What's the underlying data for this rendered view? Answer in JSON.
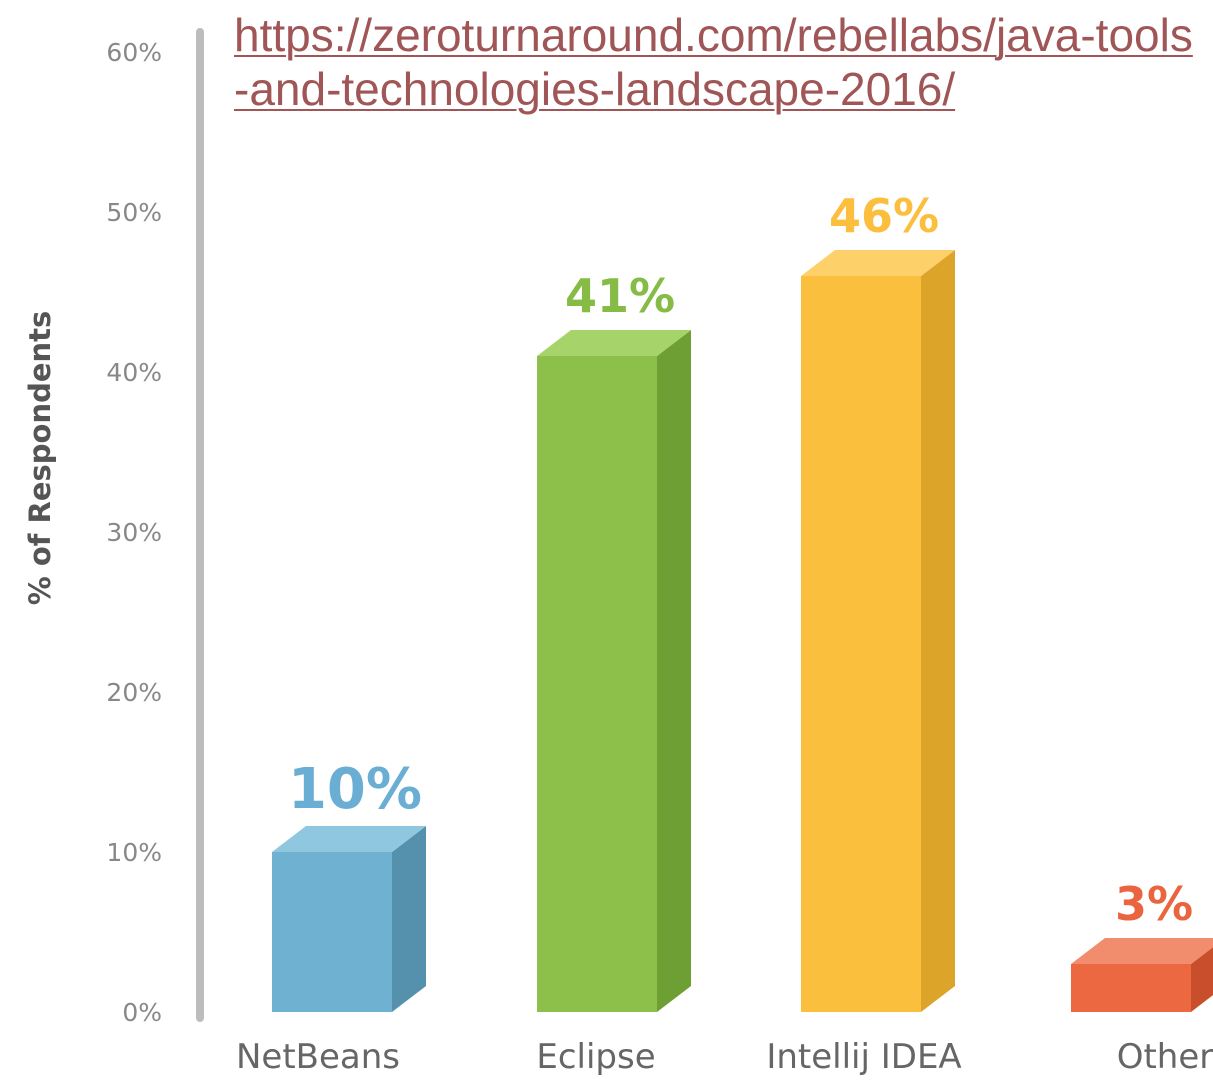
{
  "source": {
    "link_text": "https://zeroturnaround.com/rebellabs/java-tools-and-technologies-landscape-2016/"
  },
  "chart_data": {
    "type": "bar",
    "title": "",
    "xlabel": "",
    "ylabel": "% of Respondents",
    "ylim": [
      0,
      60
    ],
    "yticks": [
      0,
      10,
      20,
      30,
      40,
      50,
      60
    ],
    "ytick_labels": [
      "0%",
      "10%",
      "20%",
      "30%",
      "40%",
      "50%",
      "60%"
    ],
    "grid": false,
    "categories": [
      "NetBeans",
      "Eclipse",
      "Intellij IDEA",
      "Other"
    ],
    "values": [
      10,
      41,
      46,
      3
    ],
    "data_labels": [
      "10%",
      "41%",
      "46%",
      "3%"
    ],
    "style": "3d-extruded",
    "colors": {
      "front": [
        "#6fb1d0",
        "#8cc04a",
        "#fbbf3e",
        "#ec6841"
      ],
      "side": [
        "#5591ad",
        "#6d9f35",
        "#dca52a",
        "#c94f2c"
      ],
      "top": [
        "#8fc7e1",
        "#a6d46a",
        "#fdd06a",
        "#f18c6c"
      ],
      "label": [
        "#6aafd3",
        "#86bc45",
        "#fbbe3d",
        "#ea6440"
      ],
      "axis": "#bdbdbd",
      "tick_text": "#888888",
      "category_text": "#666666"
    }
  }
}
